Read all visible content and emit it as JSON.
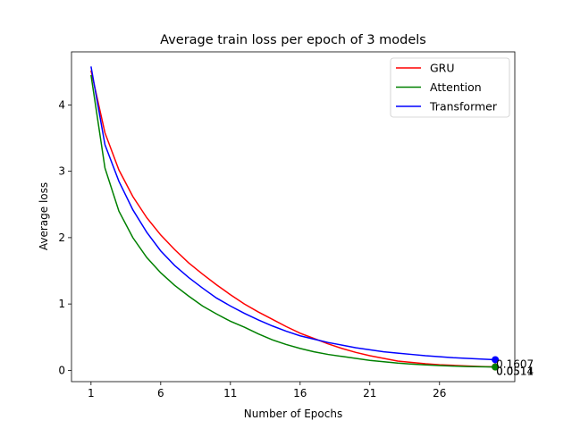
{
  "chart_data": {
    "type": "line",
    "title": "Average train loss per epoch of 3 models",
    "xlabel": "Number of Epochs",
    "ylabel": "Average loss",
    "xlim": [
      -1.4,
      30.4
    ],
    "ylim": [
      -0.17,
      4.8
    ],
    "xticks": [
      1,
      6,
      11,
      16,
      21,
      26
    ],
    "yticks": [
      0,
      1,
      2,
      3,
      4
    ],
    "grid": false,
    "legend": "top-right",
    "x": [
      0,
      1,
      2,
      3,
      4,
      5,
      6,
      7,
      8,
      9,
      10,
      11,
      12,
      13,
      14,
      15,
      16,
      17,
      18,
      19,
      20,
      21,
      22,
      23,
      24,
      25,
      26,
      27,
      28,
      29
    ],
    "series": [
      {
        "name": "GRU",
        "color": "#ff0000",
        "values": [
          4.52,
          3.58,
          3.02,
          2.62,
          2.3,
          2.04,
          1.82,
          1.62,
          1.45,
          1.29,
          1.14,
          1.0,
          0.88,
          0.77,
          0.66,
          0.56,
          0.48,
          0.4,
          0.33,
          0.27,
          0.22,
          0.18,
          0.14,
          0.12,
          0.1,
          0.085,
          0.075,
          0.065,
          0.058,
          0.0514
        ],
        "end_label": "0.0514"
      },
      {
        "name": "Attention",
        "color": "#008000",
        "values": [
          4.45,
          3.05,
          2.4,
          2.0,
          1.7,
          1.47,
          1.28,
          1.12,
          0.97,
          0.85,
          0.74,
          0.65,
          0.55,
          0.46,
          0.39,
          0.33,
          0.28,
          0.24,
          0.21,
          0.18,
          0.15,
          0.13,
          0.11,
          0.095,
          0.082,
          0.072,
          0.064,
          0.058,
          0.054,
          0.0511
        ],
        "end_label": "0.0511"
      },
      {
        "name": "Transformer",
        "color": "#0000ff",
        "values": [
          4.58,
          3.4,
          2.85,
          2.42,
          2.08,
          1.8,
          1.58,
          1.4,
          1.24,
          1.09,
          0.97,
          0.86,
          0.76,
          0.67,
          0.59,
          0.52,
          0.47,
          0.42,
          0.38,
          0.34,
          0.31,
          0.28,
          0.26,
          0.24,
          0.22,
          0.205,
          0.19,
          0.18,
          0.17,
          0.1607
        ],
        "end_label": "0.1607"
      }
    ]
  }
}
